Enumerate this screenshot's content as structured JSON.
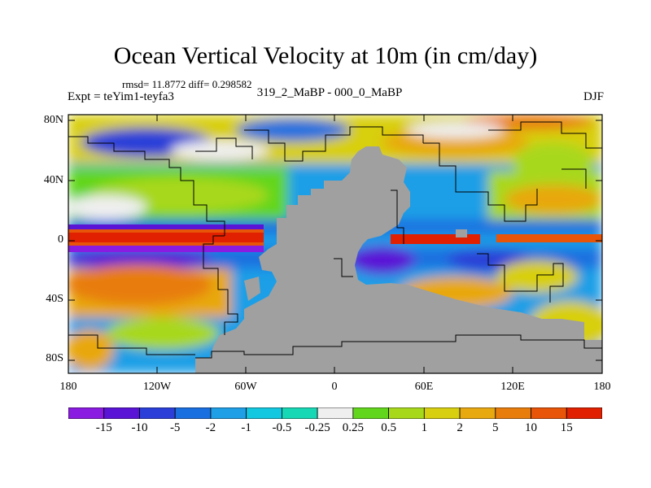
{
  "header": {
    "title": "Ocean Vertical Velocity at 10m (in cm/day)",
    "stats": "rmsd= 11.8772 diff= 0.298582",
    "experiment": "Expt = teYim1-teyfa3",
    "comparison": "319_2_MaBP - 000_0_MaBP",
    "season": "DJF"
  },
  "map": {
    "lat_labels": [
      "80N",
      "40N",
      "0",
      "40S",
      "80S"
    ],
    "lon_labels": [
      "180",
      "120W",
      "60W",
      "0",
      "60E",
      "120E",
      "180"
    ],
    "land_color": "#a0a0a0"
  },
  "colorbar": {
    "labels": [
      "-15",
      "-10",
      "-5",
      "-2",
      "-1",
      "-0.5",
      "-0.25",
      "0.25",
      "0.5",
      "1",
      "2",
      "5",
      "10",
      "15"
    ],
    "colors": [
      "#8a1be0",
      "#5a14d6",
      "#2b3fd8",
      "#1a6fe0",
      "#1e9fe6",
      "#12c8e0",
      "#16d8b4",
      "#efefef",
      "#62d61c",
      "#a8d81a",
      "#d8cf10",
      "#e8a810",
      "#e87d0c",
      "#e85408",
      "#e02000"
    ]
  }
}
